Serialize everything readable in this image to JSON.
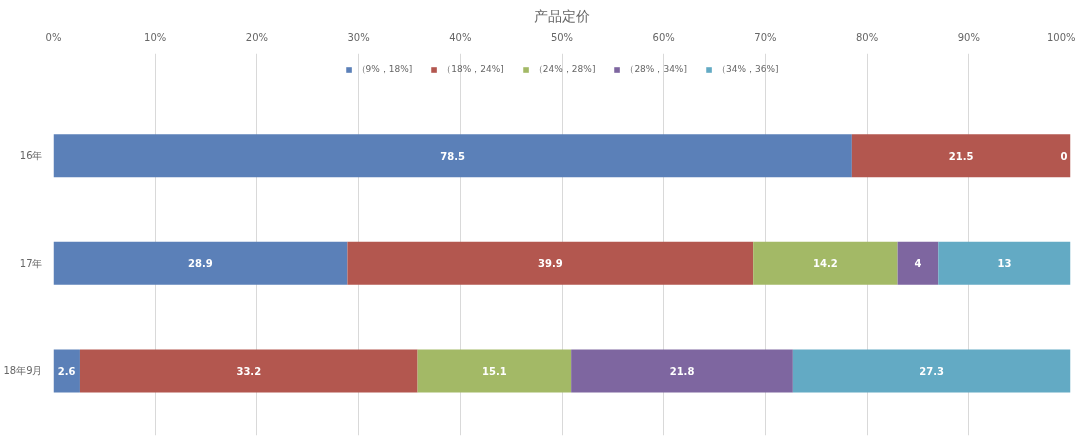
{
  "chart_data": {
    "type": "bar",
    "orientation": "horizontal",
    "stacked": true,
    "title": "产品定价",
    "categories": [
      "16年",
      "17年",
      "18年9月"
    ],
    "xlim": [
      0,
      100
    ],
    "xticks": [
      {
        "value": 0,
        "label": "0%"
      },
      {
        "value": 10,
        "label": "10%"
      },
      {
        "value": 20,
        "label": "20%"
      },
      {
        "value": 30,
        "label": "30%"
      },
      {
        "value": 40,
        "label": "40%"
      },
      {
        "value": 50,
        "label": "50%"
      },
      {
        "value": 60,
        "label": "60%"
      },
      {
        "value": 70,
        "label": "70%"
      },
      {
        "value": 80,
        "label": "80%"
      },
      {
        "value": 90,
        "label": "90%"
      },
      {
        "value": 100,
        "label": "100%"
      }
    ],
    "grid": "x",
    "legend": "top",
    "series": [
      {
        "name": "（9%，18%]",
        "color": "#5b80b8",
        "values": [
          78.5,
          28.9,
          2.6
        ],
        "value_labels": [
          "78.5",
          "28.9",
          "2.6"
        ]
      },
      {
        "name": "（18%，24%]",
        "color": "#b3574f",
        "values": [
          21.5,
          39.9,
          33.2
        ],
        "value_labels": [
          "21.5",
          "39.9",
          "33.2"
        ]
      },
      {
        "name": "（24%，28%]",
        "color": "#a3b966",
        "values": [
          0,
          14.2,
          15.1
        ],
        "value_labels": [
          null,
          "14.2",
          "15.1"
        ]
      },
      {
        "name": "（28%，34%]",
        "color": "#7e66a0",
        "values": [
          0,
          4,
          21.8
        ],
        "value_labels": [
          null,
          "4",
          "21.8"
        ]
      },
      {
        "name": "（34%，36%]",
        "color": "#63aac4",
        "values": [
          0,
          13,
          27.3
        ],
        "value_labels": [
          "0",
          "13",
          "27.3"
        ]
      }
    ]
  }
}
